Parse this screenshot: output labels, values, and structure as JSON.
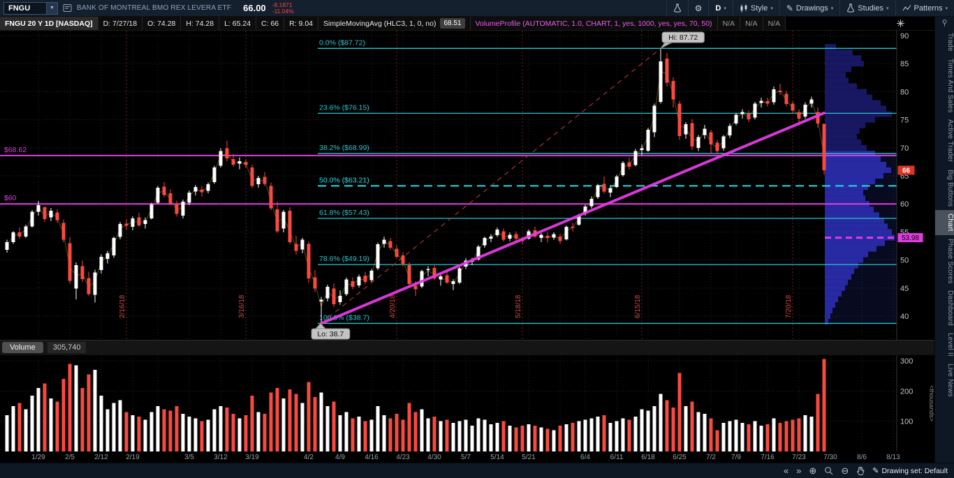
{
  "toolbar": {
    "symbol": "FNGU",
    "company": "BANK OF MONTREAL BMO REX LEVERA ETF",
    "price": "66.00",
    "change": "-8.1871",
    "change_pct": "-11.04%",
    "timeframe": "D",
    "style_label": "Style",
    "drawings_label": "Drawings",
    "studies_label": "Studies",
    "patterns_label": "Patterns"
  },
  "chart_header": {
    "title": "FNGU 20 Y 1D [NASDAQ]",
    "ohlc_segments": [
      "D: 7/27/18",
      "O: 74.28",
      "H: 74.28",
      "L: 65.24",
      "C: 66",
      "R: 9.04"
    ],
    "sma_label": "SimpleMovingAvg (HLC3, 1, 0, no)",
    "sma_value": "68.51",
    "volume_profile_label": "VolumeProfile (AUTOMATIC, 1.0, CHART, 1, yes, 1000, yes, yes, 70, 50)",
    "na_values": [
      "N/A",
      "N/A",
      "N/A"
    ]
  },
  "sidebar": {
    "tabs": [
      "Trade",
      "Times And Sales",
      "Active Trader",
      "Big Buttons",
      "Chart",
      "Phase Scores",
      "Dashboard",
      "Level II",
      "Live News"
    ],
    "active": "Chart"
  },
  "volume_pane": {
    "label": "Volume",
    "value": "305,740"
  },
  "status_bar": {
    "drawing_set_label": "Drawing set: Default"
  },
  "chart_data": {
    "type": "candlestick",
    "symbol": "FNGU",
    "title": "FNGU 20 Y 1D [NASDAQ]",
    "price_axis": {
      "ticks": [
        40,
        45,
        50,
        55,
        60,
        65,
        70,
        75,
        80,
        85,
        90
      ],
      "min": 38.2,
      "max": 90.8
    },
    "x_axis": {
      "labels": [
        {
          "i": 5,
          "t": "1/29"
        },
        {
          "i": 10,
          "t": "2/5"
        },
        {
          "i": 15,
          "t": "2/12"
        },
        {
          "i": 20,
          "t": "2/19"
        },
        {
          "i": 29,
          "t": "3/5"
        },
        {
          "i": 34,
          "t": "3/12"
        },
        {
          "i": 39,
          "t": "3/19"
        },
        {
          "i": 48,
          "t": "4/2"
        },
        {
          "i": 53,
          "t": "4/9"
        },
        {
          "i": 58,
          "t": "4/16"
        },
        {
          "i": 63,
          "t": "4/23"
        },
        {
          "i": 68,
          "t": "4/30"
        },
        {
          "i": 73,
          "t": "5/7"
        },
        {
          "i": 78,
          "t": "5/14"
        },
        {
          "i": 83,
          "t": "5/21"
        },
        {
          "i": 92,
          "t": "6/4"
        },
        {
          "i": 97,
          "t": "6/11"
        },
        {
          "i": 102,
          "t": "6/18"
        },
        {
          "i": 107,
          "t": "6/25"
        },
        {
          "i": 112,
          "t": "7/2"
        },
        {
          "i": 116,
          "t": "7/9"
        },
        {
          "i": 121,
          "t": "7/16"
        },
        {
          "i": 126,
          "t": "7/23"
        },
        {
          "i": 131,
          "t": "7/30"
        },
        {
          "i": 136,
          "t": "8/6"
        },
        {
          "i": 141,
          "t": "8/13"
        }
      ]
    },
    "week_gridline_indices": [
      5,
      10,
      15,
      20,
      24,
      29,
      34,
      39,
      44,
      48,
      53,
      58,
      63,
      68,
      73,
      78,
      83,
      88,
      92,
      97,
      102,
      107,
      112,
      116,
      121,
      126,
      131,
      136,
      141
    ],
    "expiration_lines": [
      {
        "i": 19,
        "t": "2/16/18"
      },
      {
        "i": 38,
        "t": "3/16/18"
      },
      {
        "i": 62,
        "t": "4/20/18"
      },
      {
        "i": 82,
        "t": "5/18/18"
      },
      {
        "i": 101,
        "t": "6/15/18"
      },
      {
        "i": 125,
        "t": "7/20/18"
      }
    ],
    "fib_levels": [
      {
        "t": "0.0% ($87.72)",
        "price": 87.72,
        "style": "solid"
      },
      {
        "t": "23.6% ($76.15)",
        "price": 76.15,
        "style": "solid"
      },
      {
        "t": "38.2% ($68.99)",
        "price": 68.99,
        "style": "solid"
      },
      {
        "t": "50.0% ($63.21)",
        "price": 63.21,
        "style": "dashed"
      },
      {
        "t": "61.8% ($57.43)",
        "price": 57.43,
        "style": "solid"
      },
      {
        "t": "78.6% ($49.19)",
        "price": 49.19,
        "style": "solid"
      },
      {
        "t": "100.0% ($38.7)",
        "price": 38.7,
        "style": "solid"
      }
    ],
    "horizontal_lines": [
      {
        "t": "$68.62",
        "price": 68.62
      },
      {
        "t": "$60",
        "price": 60
      }
    ],
    "poc_line": {
      "t": "53.98",
      "price": 53.98
    },
    "last_price_badge": {
      "t": "66",
      "price": 66
    },
    "hi_bubble": {
      "t": "Hi: 87.72",
      "i": 104,
      "price": 87.72
    },
    "lo_bubble": {
      "t": "Lo: 38.7",
      "i": 50,
      "price": 38.7
    },
    "trendline": {
      "i1": 50,
      "p1": 38.7,
      "i2": 130,
      "p2": 76.2
    },
    "fib_guide_dashed": {
      "i1": 50,
      "p1": 38.7,
      "i2": 104,
      "p2": 87.72
    },
    "sma": {
      "label": "SimpleMovingAvg (HLC3, 1, 0, no)",
      "last": "68.51"
    },
    "volume_axis": {
      "ticks": [
        100,
        200,
        300
      ],
      "units": "<thousands>"
    },
    "volume_profile": {
      "rows": [
        [
          88,
          16
        ],
        [
          87,
          40
        ],
        [
          86,
          52
        ],
        [
          85,
          56
        ],
        [
          84,
          38
        ],
        [
          83,
          30
        ],
        [
          82,
          34
        ],
        [
          81,
          46
        ],
        [
          80,
          60
        ],
        [
          79,
          68
        ],
        [
          78,
          80
        ],
        [
          77,
          88
        ],
        [
          76,
          96
        ],
        [
          75,
          72
        ],
        [
          74,
          58
        ],
        [
          73,
          50
        ],
        [
          72,
          46
        ],
        [
          71,
          52
        ],
        [
          70,
          60
        ],
        [
          69,
          72
        ],
        [
          68,
          80
        ],
        [
          67,
          88
        ],
        [
          66,
          95
        ],
        [
          65,
          84
        ],
        [
          64,
          72
        ],
        [
          63,
          62
        ],
        [
          62,
          55
        ],
        [
          61,
          58
        ],
        [
          60,
          64
        ],
        [
          59,
          70
        ],
        [
          58,
          78
        ],
        [
          57,
          85
        ],
        [
          56,
          90
        ],
        [
          55,
          96
        ],
        [
          54,
          100
        ],
        [
          53,
          86
        ],
        [
          52,
          74
        ],
        [
          51,
          62
        ],
        [
          50,
          55
        ],
        [
          49,
          48
        ],
        [
          48,
          42
        ],
        [
          47,
          38
        ],
        [
          46,
          33
        ],
        [
          45,
          29
        ],
        [
          44,
          24
        ],
        [
          43,
          19
        ],
        [
          42,
          15
        ],
        [
          41,
          11
        ],
        [
          40,
          8
        ],
        [
          39,
          5
        ]
      ]
    },
    "colors": {
      "up": "#ffffff",
      "down": "#f94a3f",
      "fib": "#26c6ce",
      "fib_mid": "#26e0ea",
      "magenta": "#e33be3",
      "profile": "#181862",
      "profile_bright": "#26269a",
      "grid": "#2d2d2d",
      "expiration": "#6e2621",
      "badge_red": "#e03428"
    },
    "candles": [
      [
        51.8,
        53.6,
        51.3,
        53.2,
        120
      ],
      [
        53.2,
        55.2,
        52.9,
        54.9,
        150
      ],
      [
        54.9,
        55.8,
        53.8,
        54.2,
        160
      ],
      [
        54.2,
        56.3,
        53.9,
        56.0,
        140
      ],
      [
        56.0,
        58.9,
        55.8,
        58.6,
        185
      ],
      [
        58.6,
        60.5,
        57.9,
        59.8,
        210
      ],
      [
        59.4,
        59.6,
        56.8,
        57.3,
        225
      ],
      [
        57.6,
        59.3,
        56.9,
        58.8,
        175
      ],
      [
        58.5,
        59.0,
        56.6,
        57.1,
        165
      ],
      [
        56.6,
        57.2,
        53.2,
        53.6,
        240
      ],
      [
        53.0,
        54.1,
        45.8,
        46.3,
        290
      ],
      [
        44.9,
        49.6,
        43.0,
        49.1,
        285
      ],
      [
        48.9,
        49.9,
        46.1,
        46.6,
        210
      ],
      [
        46.8,
        47.9,
        43.6,
        43.9,
        255
      ],
      [
        43.8,
        48.3,
        42.4,
        47.8,
        270
      ],
      [
        48.2,
        51.0,
        47.6,
        50.6,
        185
      ],
      [
        50.2,
        51.6,
        49.4,
        51.2,
        140
      ],
      [
        50.8,
        54.2,
        50.4,
        53.9,
        160
      ],
      [
        54.1,
        56.8,
        53.7,
        56.4,
        170
      ],
      [
        56.5,
        57.2,
        55.4,
        56.1,
        130
      ],
      [
        55.9,
        57.8,
        55.3,
        57.4,
        120
      ],
      [
        57.6,
        58.4,
        55.9,
        56.2,
        115
      ],
      [
        56.4,
        57.6,
        55.6,
        57.1,
        105
      ],
      [
        57.4,
        60.2,
        57.2,
        59.9,
        130
      ],
      [
        60.2,
        63.2,
        60.0,
        62.9,
        150
      ],
      [
        63.1,
        63.9,
        61.2,
        61.6,
        140
      ],
      [
        61.9,
        62.6,
        59.8,
        60.1,
        135
      ],
      [
        60.0,
        60.6,
        57.7,
        58.2,
        150
      ],
      [
        57.9,
        60.8,
        57.4,
        60.4,
        125
      ],
      [
        60.2,
        62.4,
        59.8,
        62.0,
        115
      ],
      [
        62.2,
        63.4,
        61.5,
        63.0,
        110
      ],
      [
        62.6,
        63.2,
        61.3,
        62.1,
        100
      ],
      [
        62.3,
        63.8,
        61.9,
        63.5,
        105
      ],
      [
        63.9,
        66.8,
        63.6,
        66.5,
        140
      ],
      [
        66.8,
        69.9,
        66.5,
        69.4,
        150
      ],
      [
        69.9,
        71.2,
        67.6,
        68.1,
        145
      ],
      [
        68.0,
        68.9,
        66.6,
        67.0,
        125
      ],
      [
        67.2,
        68.3,
        66.2,
        67.6,
        110
      ],
      [
        67.5,
        68.0,
        66.4,
        66.9,
        120
      ],
      [
        66.5,
        67.0,
        62.8,
        63.2,
        185
      ],
      [
        63.5,
        65.0,
        62.9,
        64.6,
        130
      ],
      [
        64.8,
        65.7,
        63.2,
        63.6,
        125
      ],
      [
        63.2,
        63.8,
        58.9,
        59.2,
        195
      ],
      [
        59.0,
        60.4,
        54.8,
        55.1,
        210
      ],
      [
        55.6,
        58.9,
        54.9,
        58.6,
        175
      ],
      [
        58.8,
        59.4,
        52.9,
        53.2,
        205
      ],
      [
        52.9,
        54.3,
        51.0,
        51.6,
        190
      ],
      [
        51.9,
        53.9,
        51.2,
        53.6,
        160
      ],
      [
        52.9,
        53.3,
        45.9,
        46.7,
        230
      ],
      [
        46.9,
        48.2,
        44.3,
        44.9,
        180
      ],
      [
        42.6,
        43.4,
        38.7,
        42.9,
        195
      ],
      [
        43.2,
        45.6,
        42.6,
        45.2,
        150
      ],
      [
        44.9,
        45.8,
        41.6,
        42.1,
        165
      ],
      [
        42.5,
        44.6,
        42.0,
        43.6,
        120
      ],
      [
        43.9,
        46.9,
        43.6,
        46.5,
        130
      ],
      [
        46.2,
        46.9,
        44.8,
        45.2,
        110
      ],
      [
        45.5,
        47.4,
        45.1,
        47.0,
        115
      ],
      [
        47.2,
        47.9,
        45.7,
        46.1,
        100
      ],
      [
        46.4,
        48.4,
        46.1,
        48.1,
        105
      ],
      [
        48.5,
        53.1,
        48.2,
        52.8,
        150
      ],
      [
        52.9,
        54.2,
        52.2,
        53.6,
        120
      ],
      [
        53.4,
        53.9,
        51.8,
        52.2,
        110
      ],
      [
        52.0,
        52.6,
        50.2,
        50.6,
        125
      ],
      [
        50.8,
        51.4,
        48.9,
        49.3,
        105
      ],
      [
        49.1,
        49.6,
        45.3,
        45.7,
        160
      ],
      [
        45.4,
        46.2,
        43.6,
        44.8,
        130
      ],
      [
        45.3,
        48.3,
        45.0,
        48.0,
        140
      ],
      [
        48.2,
        48.9,
        47.1,
        48.4,
        110
      ],
      [
        48.6,
        49.1,
        46.4,
        46.7,
        115
      ],
      [
        46.5,
        47.4,
        45.4,
        47.1,
        100
      ],
      [
        47.3,
        47.9,
        45.7,
        46.0,
        105
      ],
      [
        45.7,
        46.6,
        44.6,
        46.2,
        95
      ],
      [
        46.0,
        48.7,
        45.7,
        48.5,
        100
      ],
      [
        48.8,
        50.3,
        48.4,
        49.9,
        105
      ],
      [
        49.7,
        50.4,
        49.1,
        50.0,
        85
      ],
      [
        50.1,
        52.7,
        49.9,
        52.4,
        110
      ],
      [
        52.6,
        54.2,
        52.2,
        53.9,
        105
      ],
      [
        53.8,
        54.6,
        53.2,
        54.2,
        90
      ],
      [
        54.4,
        55.8,
        54.1,
        55.4,
        95
      ],
      [
        55.1,
        55.6,
        53.3,
        53.6,
        100
      ],
      [
        53.8,
        54.9,
        53.4,
        54.5,
        85
      ],
      [
        54.6,
        55.1,
        53.4,
        53.8,
        80
      ],
      [
        53.7,
        54.2,
        52.9,
        53.4,
        85
      ],
      [
        53.8,
        55.4,
        53.6,
        55.1,
        90
      ],
      [
        55.3,
        55.9,
        53.9,
        54.2,
        85
      ],
      [
        53.9,
        54.8,
        53.2,
        54.5,
        80
      ],
      [
        54.3,
        54.9,
        53.1,
        53.9,
        75
      ],
      [
        54.0,
        54.9,
        53.6,
        54.6,
        70
      ],
      [
        54.2,
        54.7,
        52.9,
        53.4,
        85
      ],
      [
        53.7,
        56.2,
        53.5,
        55.9,
        90
      ],
      [
        55.9,
        56.6,
        55.1,
        55.8,
        95
      ],
      [
        56.3,
        58.2,
        56.1,
        57.9,
        100
      ],
      [
        58.2,
        59.9,
        57.9,
        59.5,
        105
      ],
      [
        59.6,
        61.3,
        59.2,
        60.9,
        110
      ],
      [
        61.2,
        63.6,
        60.9,
        63.3,
        115
      ],
      [
        63.6,
        64.9,
        61.8,
        62.2,
        120
      ],
      [
        62.0,
        63.1,
        61.2,
        62.8,
        95
      ],
      [
        63.0,
        65.2,
        62.8,
        64.9,
        100
      ],
      [
        65.1,
        67.6,
        64.9,
        67.3,
        110
      ],
      [
        67.4,
        68.3,
        66.1,
        66.6,
        105
      ],
      [
        66.9,
        69.8,
        66.7,
        69.4,
        115
      ],
      [
        69.6,
        70.6,
        68.7,
        69.9,
        140
      ],
      [
        69.5,
        73.6,
        69.2,
        73.2,
        135
      ],
      [
        72.8,
        77.9,
        71.9,
        77.5,
        150
      ],
      [
        78.2,
        87.72,
        77.9,
        85.4,
        190
      ],
      [
        85.9,
        86.9,
        80.9,
        81.6,
        170
      ],
      [
        81.9,
        82.6,
        77.2,
        78.6,
        145
      ],
      [
        77.9,
        78.4,
        71.4,
        72.1,
        260
      ],
      [
        72.4,
        74.6,
        71.6,
        74.2,
        150
      ],
      [
        74.4,
        75.1,
        69.6,
        70.2,
        165
      ],
      [
        70.0,
        72.3,
        69.4,
        71.9,
        130
      ],
      [
        72.3,
        74.1,
        71.6,
        73.4,
        125
      ],
      [
        72.8,
        73.2,
        69.0,
        70.6,
        110
      ],
      [
        70.9,
        71.4,
        68.9,
        69.4,
        70
      ],
      [
        69.9,
        72.3,
        69.5,
        72.0,
        95
      ],
      [
        72.2,
        74.3,
        71.8,
        73.9,
        100
      ],
      [
        74.3,
        76.2,
        74.0,
        75.9,
        105
      ],
      [
        76.0,
        76.9,
        75.2,
        76.4,
        95
      ],
      [
        76.1,
        76.6,
        74.6,
        75.1,
        90
      ],
      [
        75.4,
        78.2,
        75.1,
        77.9,
        100
      ],
      [
        78.0,
        78.9,
        77.2,
        78.4,
        85
      ],
      [
        78.3,
        78.9,
        77.4,
        77.9,
        90
      ],
      [
        78.1,
        80.9,
        77.7,
        80.4,
        110
      ],
      [
        80.2,
        81.4,
        79.4,
        79.9,
        95
      ],
      [
        79.6,
        80.2,
        77.4,
        77.8,
        100
      ],
      [
        77.9,
        78.4,
        76.2,
        76.6,
        105
      ],
      [
        76.4,
        76.9,
        74.4,
        75.2,
        110
      ],
      [
        75.6,
        78.1,
        75.2,
        77.7,
        120
      ],
      [
        77.9,
        79.1,
        77.2,
        78.6,
        115
      ],
      [
        76.4,
        77.2,
        73.6,
        74.3,
        190
      ],
      [
        74.28,
        74.28,
        65.24,
        66.0,
        305.74
      ]
    ]
  }
}
